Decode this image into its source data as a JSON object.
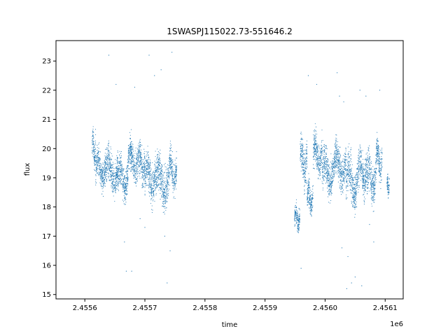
{
  "chart_data": {
    "type": "scatter",
    "title": "1SWASPJ115022.73-551646.2",
    "xlabel": "time",
    "ylabel": "flux",
    "x_offset_label": "1e6",
    "xlim": [
      2455552,
      2456130
    ],
    "ylim": [
      14.85,
      23.7
    ],
    "x_ticks": [
      2455600,
      2455700,
      2455800,
      2455900,
      2456000,
      2456100
    ],
    "x_tick_labels": [
      "2.4556",
      "2.4557",
      "2.4558",
      "2.4559",
      "2.4560",
      "2.4561"
    ],
    "y_ticks": [
      15,
      16,
      17,
      18,
      19,
      20,
      21,
      22,
      23
    ],
    "y_tick_labels": [
      "15",
      "16",
      "17",
      "18",
      "19",
      "20",
      "21",
      "22",
      "23"
    ],
    "grid": false,
    "series": [
      {
        "color": "#1f77b4",
        "segments": [
          {
            "x_start": 2455612,
            "x_end": 2455618,
            "y_center": 20.0,
            "spread": 0.8
          },
          {
            "x_start": 2455618,
            "x_end": 2455635,
            "y_center": 19.3,
            "spread": 0.9
          },
          {
            "x_start": 2455635,
            "x_end": 2455655,
            "y_center": 19.2,
            "spread": 1.0
          },
          {
            "x_start": 2455655,
            "x_end": 2455672,
            "y_center": 19.0,
            "spread": 1.0
          },
          {
            "x_start": 2455672,
            "x_end": 2455690,
            "y_center": 19.6,
            "spread": 0.9
          },
          {
            "x_start": 2455690,
            "x_end": 2455700,
            "y_center": 19.4,
            "spread": 1.0
          },
          {
            "x_start": 2455700,
            "x_end": 2455718,
            "y_center": 19.0,
            "spread": 1.1
          },
          {
            "x_start": 2455718,
            "x_end": 2455740,
            "y_center": 18.9,
            "spread": 1.2
          },
          {
            "x_start": 2455740,
            "x_end": 2455753,
            "y_center": 19.2,
            "spread": 1.0
          },
          {
            "x_start": 2455949,
            "x_end": 2455958,
            "y_center": 17.6,
            "spread": 0.6
          },
          {
            "x_start": 2455958,
            "x_end": 2455970,
            "y_center": 19.6,
            "spread": 1.1
          },
          {
            "x_start": 2455970,
            "x_end": 2455980,
            "y_center": 18.3,
            "spread": 0.8
          },
          {
            "x_start": 2455980,
            "x_end": 2455995,
            "y_center": 19.8,
            "spread": 1.0
          },
          {
            "x_start": 2455995,
            "x_end": 2456015,
            "y_center": 19.2,
            "spread": 1.1
          },
          {
            "x_start": 2456015,
            "x_end": 2456035,
            "y_center": 19.4,
            "spread": 1.1
          },
          {
            "x_start": 2456035,
            "x_end": 2456055,
            "y_center": 18.9,
            "spread": 1.2
          },
          {
            "x_start": 2456055,
            "x_end": 2456070,
            "y_center": 19.2,
            "spread": 1.1
          },
          {
            "x_start": 2456070,
            "x_end": 2456085,
            "y_center": 19.0,
            "spread": 1.2
          },
          {
            "x_start": 2456085,
            "x_end": 2456095,
            "y_center": 19.6,
            "spread": 1.0
          },
          {
            "x_start": 2456103,
            "x_end": 2456107,
            "y_center": 18.7,
            "spread": 0.5
          }
        ],
        "outliers": [
          [
            2455640,
            23.2
          ],
          [
            2455652,
            22.2
          ],
          [
            2455666,
            16.8
          ],
          [
            2455669,
            15.8
          ],
          [
            2455678,
            15.8
          ],
          [
            2455683,
            22.1
          ],
          [
            2455692,
            17.6
          ],
          [
            2455700,
            17.3
          ],
          [
            2455707,
            23.2
          ],
          [
            2455716,
            22.5
          ],
          [
            2455727,
            22.7
          ],
          [
            2455733,
            17.0
          ],
          [
            2455737,
            15.4
          ],
          [
            2455742,
            16.5
          ],
          [
            2455745,
            23.3
          ],
          [
            2455960,
            15.9
          ],
          [
            2455972,
            22.5
          ],
          [
            2455986,
            22.2
          ],
          [
            2456020,
            22.6
          ],
          [
            2456024,
            21.8
          ],
          [
            2456031,
            21.6
          ],
          [
            2456038,
            16.3
          ],
          [
            2456044,
            15.4
          ],
          [
            2456050,
            15.6
          ],
          [
            2456058,
            22.0
          ],
          [
            2456061,
            15.3
          ],
          [
            2456068,
            21.8
          ],
          [
            2456074,
            17.4
          ],
          [
            2456081,
            16.8
          ],
          [
            2456091,
            22.0
          ],
          [
            2456028,
            16.6
          ],
          [
            2456036,
            15.2
          ]
        ]
      }
    ]
  }
}
